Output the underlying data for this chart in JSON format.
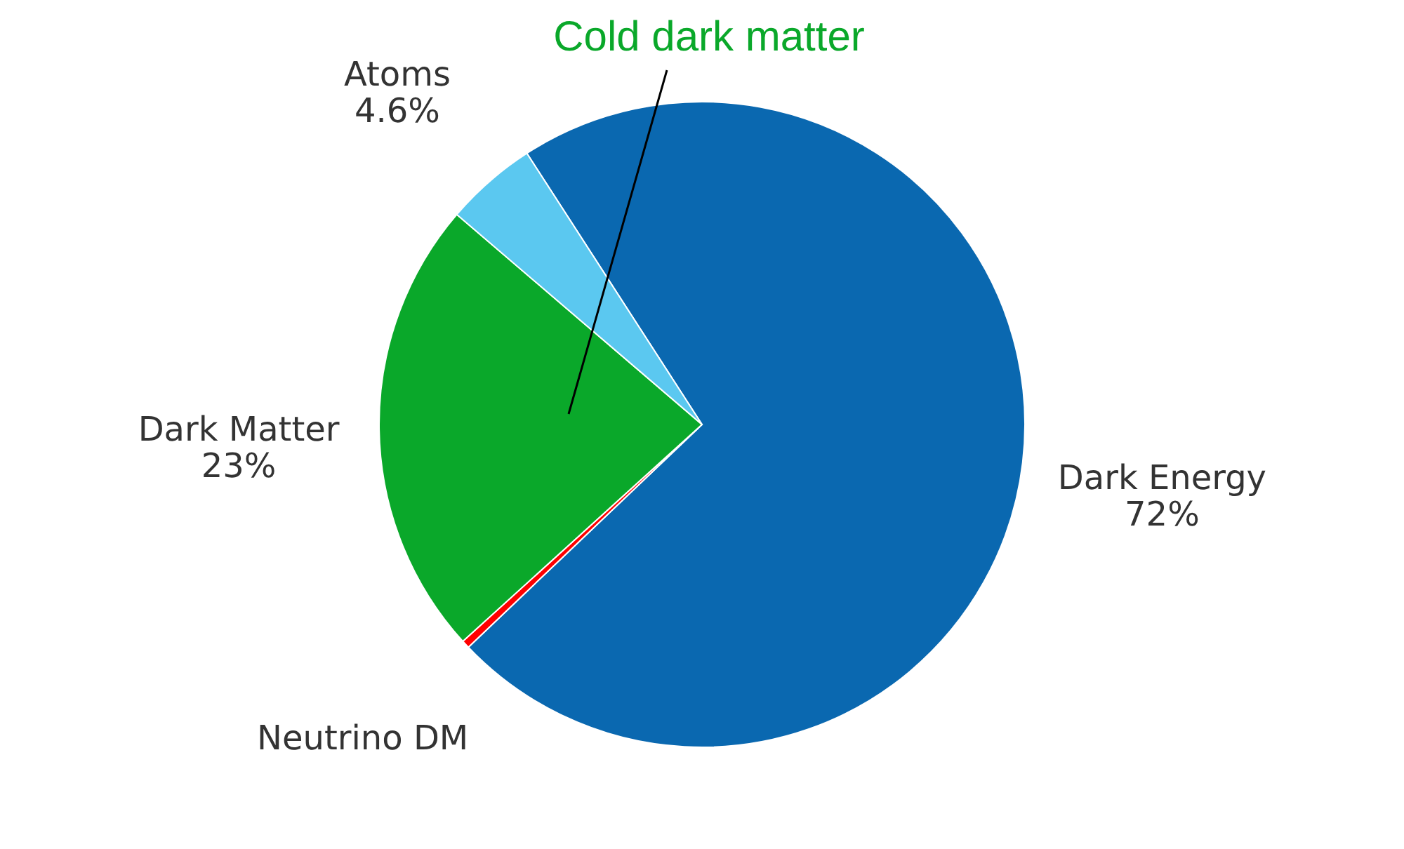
{
  "chart_data": {
    "type": "pie",
    "categories": [
      "Dark Energy",
      "Neutrino DM",
      "Dark Matter",
      "Atoms"
    ],
    "values": [
      72,
      0.4,
      23,
      4.6
    ],
    "colors": [
      "#0a68b0",
      "#ff0000",
      "#0aa82a",
      "#5bc8f0"
    ],
    "value_labels": [
      "72%",
      null,
      "23%",
      "4.6%"
    ],
    "annotations": [
      "Cold dark matter"
    ],
    "legend": false
  }
}
